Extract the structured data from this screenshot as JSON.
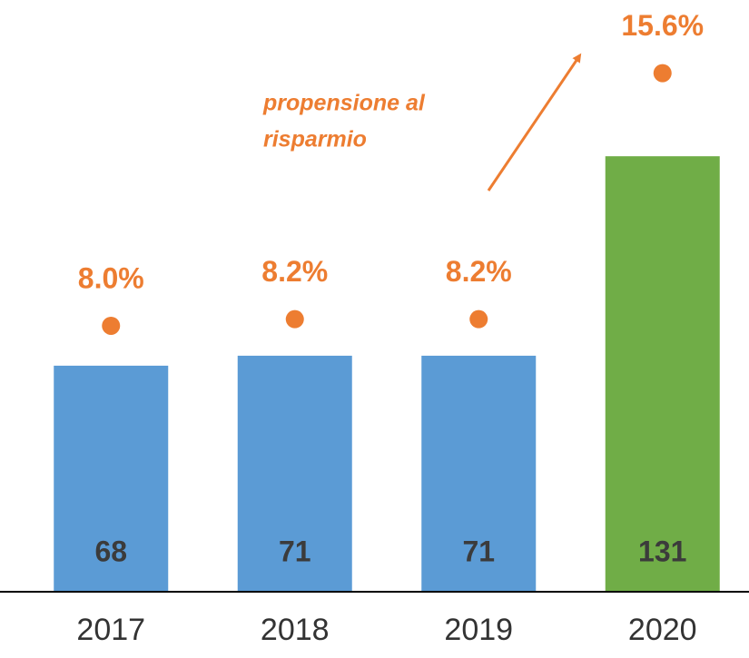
{
  "chart_data": {
    "type": "bar",
    "categories": [
      "2017",
      "2018",
      "2019",
      "2020"
    ],
    "series": [
      {
        "values": [
          68,
          71,
          71,
          131
        ],
        "colors": [
          "#5b9bd5",
          "#5b9bd5",
          "#5b9bd5",
          "#70ad47"
        ]
      },
      {
        "type": "dot",
        "axis": "y2",
        "values": [
          8.0,
          8.2,
          8.2,
          15.6
        ],
        "value_labels": [
          "8.0%",
          "8.2%",
          "8.2%",
          "15.6%"
        ],
        "color": "#ed7d31"
      }
    ],
    "ylim": [
      0,
      178
    ],
    "y2lim": [
      0,
      17.8
    ],
    "annotation": {
      "lines": [
        "propensione al",
        "risparmio"
      ],
      "color": "#ed7d31"
    }
  }
}
